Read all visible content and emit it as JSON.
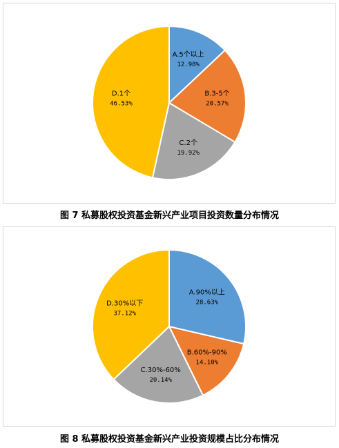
{
  "colors": {
    "blue": "#5b9bd5",
    "orange": "#ed7d31",
    "gray": "#a5a5a5",
    "gold": "#ffc000"
  },
  "captions": {
    "figure7": "图 7  私募股权投资基金新兴产业项目投资数量分布情况",
    "figure8": "图 8  私募股权投资基金新兴产业投资规模占比分布情况"
  },
  "chart_data": [
    {
      "type": "pie",
      "title": "图 7  私募股权投资基金新兴产业项目投资数量分布情况",
      "categories": [
        "A.5个以上",
        "B.3-5个",
        "C.2个",
        "D.1个"
      ],
      "values": [
        12.98,
        20.57,
        19.92,
        46.53
      ],
      "value_labels": [
        "12.98%",
        "20.57%",
        "19.92%",
        "46.53%"
      ],
      "colors": [
        "#5b9bd5",
        "#ed7d31",
        "#a5a5a5",
        "#ffc000"
      ],
      "start": "12 o'clock",
      "direction": "clockwise",
      "legend": "none"
    },
    {
      "type": "pie",
      "title": "图 8  私募股权投资基金新兴产业投资规模占比分布情况",
      "categories": [
        "A.90%以上",
        "B.60%-90%",
        "C.30%-60%",
        "D.30%以下"
      ],
      "values": [
        28.63,
        14.1,
        20.14,
        37.12
      ],
      "value_labels": [
        "28.63%",
        "14.10%",
        "20.14%",
        "37.12%"
      ],
      "colors": [
        "#5b9bd5",
        "#ed7d31",
        "#a5a5a5",
        "#ffc000"
      ],
      "start": "12 o'clock",
      "direction": "clockwise",
      "legend": "none"
    }
  ]
}
